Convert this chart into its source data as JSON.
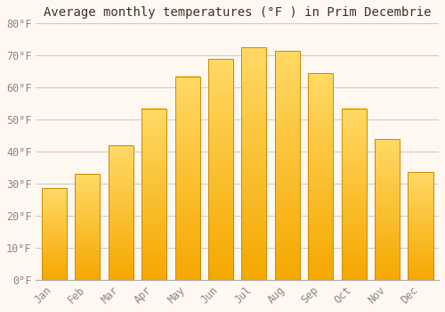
{
  "title": "Average monthly temperatures (°F ) in Prim Decembrie",
  "months": [
    "Jan",
    "Feb",
    "Mar",
    "Apr",
    "May",
    "Jun",
    "Jul",
    "Aug",
    "Sep",
    "Oct",
    "Nov",
    "Dec"
  ],
  "values": [
    28.5,
    33.0,
    42.0,
    53.5,
    63.5,
    69.0,
    72.5,
    71.5,
    64.5,
    53.5,
    44.0,
    33.5
  ],
  "bar_color_bottom": "#F5A800",
  "bar_color_top": "#FFD966",
  "bar_edge_color": "#CC8800",
  "ylim": [
    0,
    80
  ],
  "yticks": [
    0,
    10,
    20,
    30,
    40,
    50,
    60,
    70,
    80
  ],
  "ytick_labels": [
    "0°F",
    "10°F",
    "20°F",
    "30°F",
    "40°F",
    "50°F",
    "60°F",
    "70°F",
    "80°F"
  ],
  "background_color": "#FFF8F0",
  "plot_bg_color": "#FFF8F0",
  "grid_color": "#CCCCCC",
  "title_fontsize": 10,
  "tick_fontsize": 8.5,
  "bar_width": 0.75
}
